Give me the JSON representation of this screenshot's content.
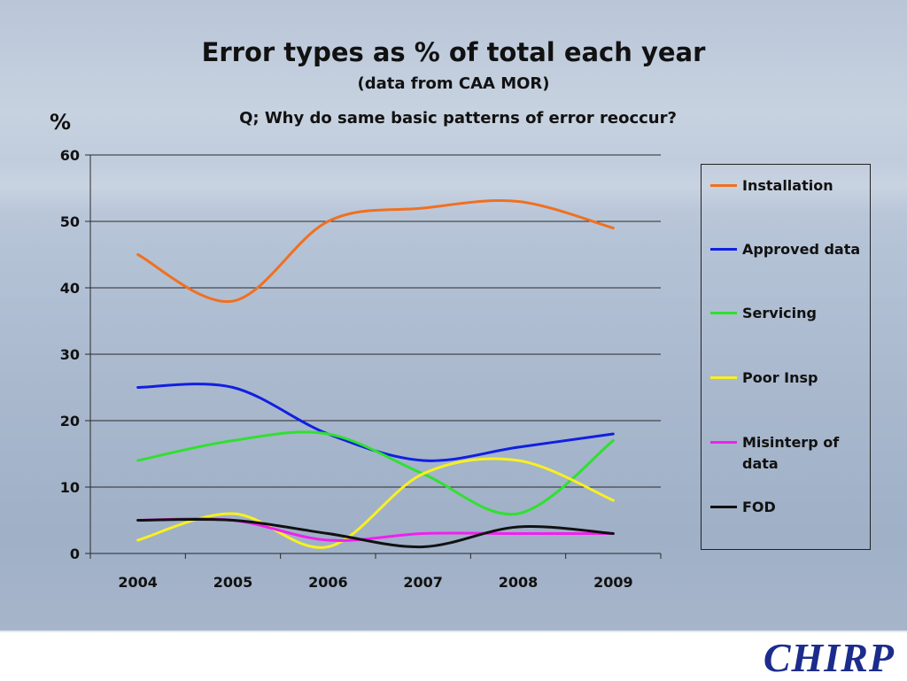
{
  "slide": {
    "title": "Error types as % of total each year",
    "subtitle": "(data from CAA MOR)",
    "question": "Q; Why do same basic patterns of error reoccur?",
    "y_unit": "%",
    "logo": "CHIRP"
  },
  "colors": {
    "installation": "#f07020",
    "approved": "#1020e0",
    "servicing": "#30e030",
    "poor_insp": "#f8f020",
    "misinterp": "#f020f0",
    "fod": "#111111"
  },
  "chart_data": {
    "type": "line",
    "title": "Error types as % of total each year",
    "xlabel": "",
    "ylabel": "%",
    "ylim": [
      0,
      60
    ],
    "yticks": [
      0,
      10,
      20,
      30,
      40,
      50,
      60
    ],
    "categories": [
      "2004",
      "2005",
      "2006",
      "2007",
      "2008",
      "2009"
    ],
    "legend_position": "right",
    "series": [
      {
        "key": "installation",
        "name": "Installation",
        "values": [
          45,
          38,
          50,
          52,
          53,
          49
        ]
      },
      {
        "key": "approved",
        "name": "Approved data",
        "values": [
          25,
          25,
          18,
          14,
          16,
          18
        ]
      },
      {
        "key": "servicing",
        "name": "Servicing",
        "values": [
          14,
          17,
          18,
          12,
          6,
          17
        ]
      },
      {
        "key": "poor_insp",
        "name": "Poor Insp",
        "values": [
          2,
          6,
          1,
          12,
          14,
          8
        ]
      },
      {
        "key": "misinterp",
        "name": "Misinterp of data",
        "values": [
          5,
          5,
          2,
          3,
          3,
          3
        ]
      },
      {
        "key": "fod",
        "name": "FOD",
        "values": [
          5,
          5,
          3,
          1,
          4,
          3
        ]
      }
    ]
  }
}
